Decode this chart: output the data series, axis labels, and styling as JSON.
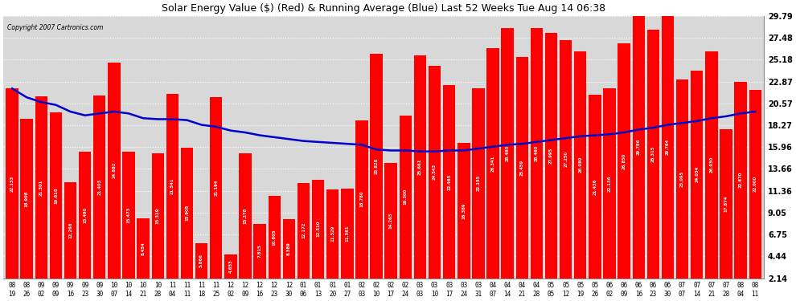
{
  "title": "Solar Energy Value ($) (Red) & Running Average (Blue) Last 52 Weeks Tue Aug 14 06:38",
  "copyright": "Copyright 2007 Cartronics.com",
  "bar_color": "#ff0000",
  "line_color": "#0000cc",
  "bg_color": "#ffffff",
  "plot_bg_color": "#d8d8d8",
  "grid_color": "#ffffff",
  "categories": [
    "08-19",
    "08-26",
    "09-02",
    "09-09",
    "09-16",
    "09-23",
    "09-30",
    "10-07",
    "10-14",
    "10-21",
    "10-28",
    "11-04",
    "11-11",
    "11-18",
    "11-25",
    "12-02",
    "12-09",
    "12-16",
    "12-23",
    "12-30",
    "01-06",
    "01-13",
    "01-20",
    "01-27",
    "02-03",
    "02-10",
    "02-17",
    "02-24",
    "03-03",
    "03-10",
    "03-17",
    "03-24",
    "03-31",
    "04-07",
    "04-14",
    "04-21",
    "04-28",
    "05-05",
    "05-12",
    "05-19",
    "05-26",
    "06-02",
    "06-09",
    "06-16",
    "06-23",
    "06-30",
    "07-07",
    "07-14",
    "07-21",
    "07-28",
    "08-04",
    "08-11"
  ],
  "values": [
    22.133,
    18.908,
    21.301,
    19.618,
    12.266,
    15.49,
    21.403,
    24.882,
    15.473,
    8.454,
    15.319,
    21.541,
    15.905,
    5.866,
    21.194,
    4.653,
    15.278,
    7.815,
    10.805,
    8.389,
    12.172,
    12.51,
    11.529,
    11.561,
    18.78,
    25.828,
    14.263,
    19.3,
    25.661,
    24.543,
    22.465,
    16.389,
    22.155,
    26.341,
    28.48,
    25.459,
    28.46,
    27.995,
    27.25,
    26.08,
    21.436,
    22.136,
    26.85,
    29.786,
    28.315,
    29.764,
    23.095,
    24.034,
    26.03,
    17.874,
    22.87,
    22.0
  ],
  "running_avg": [
    22.133,
    21.2,
    20.7,
    20.4,
    19.7,
    19.3,
    19.5,
    19.7,
    19.5,
    19.0,
    18.9,
    18.9,
    18.8,
    18.3,
    18.1,
    17.7,
    17.5,
    17.2,
    17.0,
    16.8,
    16.6,
    16.5,
    16.4,
    16.3,
    16.2,
    15.7,
    15.6,
    15.6,
    15.5,
    15.5,
    15.6,
    15.6,
    15.8,
    16.0,
    16.2,
    16.3,
    16.5,
    16.7,
    16.9,
    17.1,
    17.2,
    17.3,
    17.5,
    17.8,
    18.0,
    18.3,
    18.5,
    18.7,
    19.0,
    19.2,
    19.5,
    19.7
  ],
  "yticks": [
    2.14,
    4.44,
    6.75,
    9.05,
    11.36,
    13.66,
    15.96,
    18.27,
    20.57,
    22.87,
    25.18,
    27.48,
    29.79
  ],
  "ymin": 2.14,
  "ymax": 29.79
}
